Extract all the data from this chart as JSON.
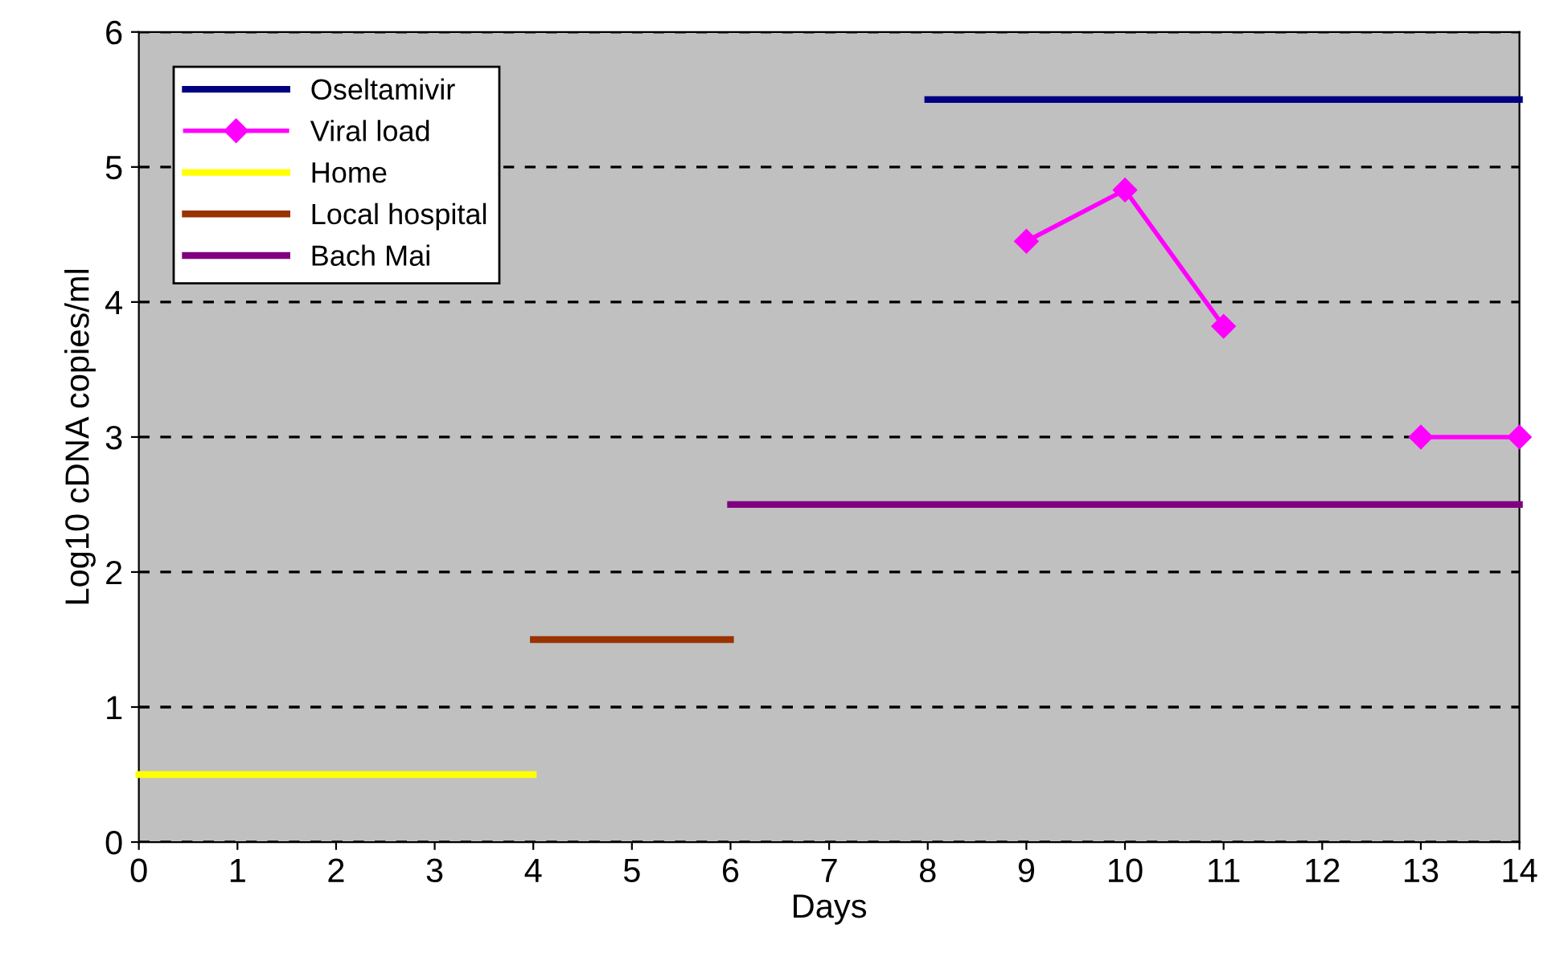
{
  "chart_data": {
    "type": "line",
    "xlabel": "Days",
    "ylabel": "Log10 cDNA copies/ml",
    "xlim": [
      0,
      14
    ],
    "xticks": [
      0,
      1,
      2,
      3,
      4,
      5,
      6,
      7,
      8,
      9,
      10,
      11,
      12,
      13,
      14
    ],
    "ylim": [
      0,
      6
    ],
    "yticks": [
      0,
      1,
      2,
      3,
      4,
      5,
      6
    ],
    "grid": "y",
    "line_style": "solid",
    "legend": "top left",
    "series": [
      {
        "name": "Oseltamivir",
        "color": "#000080",
        "x": [
          8,
          14
        ],
        "values": [
          5.5,
          5.5
        ],
        "marker": "none"
      },
      {
        "name": "Viral load",
        "color": "#ff00ff",
        "x": [
          9,
          10,
          11,
          12,
          13,
          14
        ],
        "values": [
          4.45,
          4.83,
          3.82,
          null,
          3.0,
          3.0
        ],
        "marker": "diamond"
      },
      {
        "name": "Home",
        "color": "#ffff00",
        "x": [
          0,
          4
        ],
        "values": [
          0.5,
          0.5
        ],
        "marker": "none"
      },
      {
        "name": "Local hospital",
        "color": "#993300",
        "x": [
          4,
          6
        ],
        "values": [
          1.5,
          1.5
        ],
        "marker": "none"
      },
      {
        "name": "Bach Mai",
        "color": "#800080",
        "x": [
          6,
          14
        ],
        "values": [
          2.5,
          2.5
        ],
        "marker": "none"
      }
    ]
  }
}
